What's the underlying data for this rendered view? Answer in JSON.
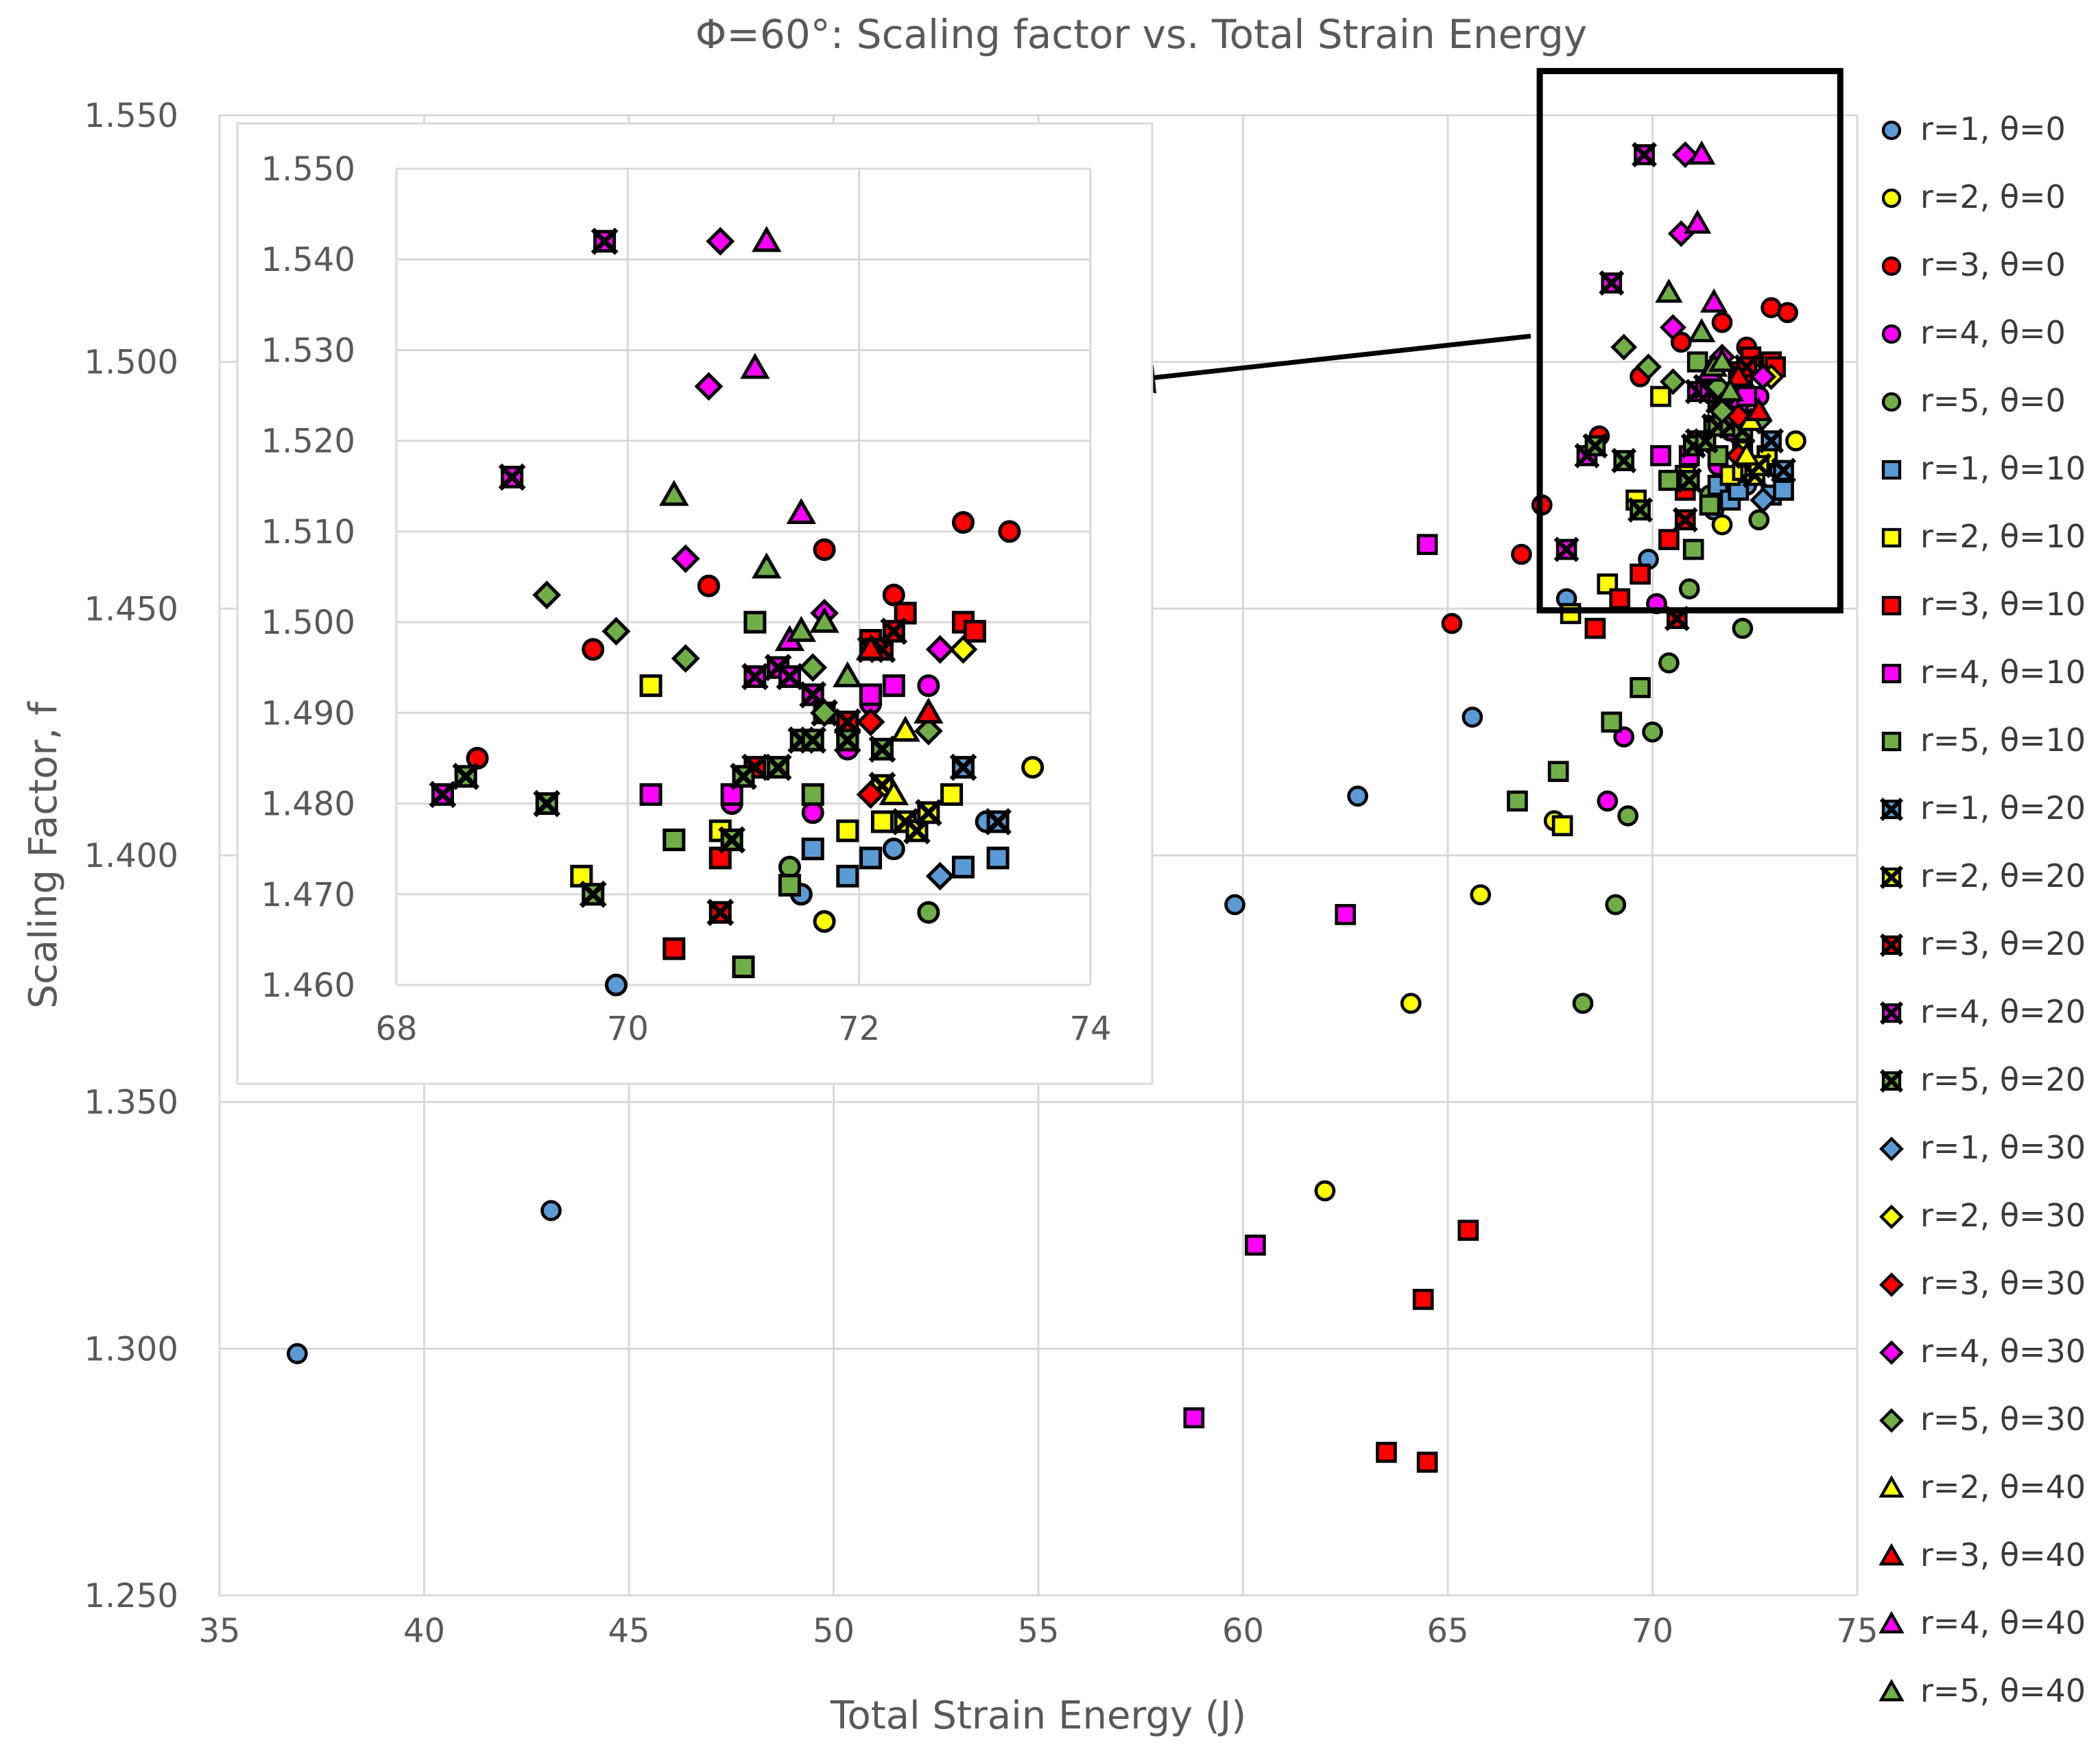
{
  "chart_data": {
    "type": "scatter",
    "title": "Φ=60°: Scaling factor vs. Total Strain Energy",
    "xlabel": "Total Strain Energy (J)",
    "ylabel": "Scaling Factor, f",
    "xlim": [
      35,
      75
    ],
    "ylim": [
      1.25,
      1.55
    ],
    "xticks": [
      "35",
      "40",
      "45",
      "50",
      "55",
      "60",
      "65",
      "70",
      "75"
    ],
    "yticks": [
      "1.250",
      "1.300",
      "1.350",
      "1.400",
      "1.450",
      "1.500",
      "1.550"
    ],
    "grid": true,
    "legend_position": "right",
    "inset": {
      "xlim": [
        68,
        74
      ],
      "ylim": [
        1.46,
        1.55
      ],
      "xticks": [
        "68",
        "70",
        "72",
        "74"
      ],
      "yticks": [
        "1.460",
        "1.470",
        "1.480",
        "1.490",
        "1.500",
        "1.510",
        "1.520",
        "1.530",
        "1.540",
        "1.550"
      ],
      "highlight_box": {
        "x": [
          68,
          74
        ],
        "y": [
          1.458,
          1.552
        ]
      }
    },
    "series": [
      {
        "name": "r=1, θ=0",
        "marker": "circle",
        "color": "#5b9bd5",
        "points": [
          [
            36.9,
            1.299
          ],
          [
            43.1,
            1.328
          ],
          [
            59.8,
            1.39
          ],
          [
            62.8,
            1.412
          ],
          [
            65.6,
            1.428
          ],
          [
            67.9,
            1.452
          ],
          [
            69.9,
            1.46
          ],
          [
            71.5,
            1.47
          ],
          [
            72.3,
            1.475
          ],
          [
            73.1,
            1.478
          ]
        ]
      },
      {
        "name": "r=2, θ=0",
        "marker": "circle",
        "color": "#ffff00",
        "points": [
          [
            62.0,
            1.332
          ],
          [
            64.1,
            1.37
          ],
          [
            65.8,
            1.392
          ],
          [
            67.6,
            1.407
          ],
          [
            71.7,
            1.467
          ],
          [
            73.5,
            1.484
          ]
        ]
      },
      {
        "name": "r=3, θ=0",
        "marker": "circle",
        "color": "#ff0000",
        "points": [
          [
            65.1,
            1.447
          ],
          [
            66.8,
            1.461
          ],
          [
            67.3,
            1.471
          ],
          [
            68.7,
            1.485
          ],
          [
            69.7,
            1.497
          ],
          [
            70.7,
            1.504
          ],
          [
            71.7,
            1.508
          ],
          [
            72.3,
            1.503
          ],
          [
            72.9,
            1.511
          ],
          [
            73.3,
            1.51
          ]
        ]
      },
      {
        "name": "r=4, θ=0",
        "marker": "circle",
        "color": "#ff00ff",
        "points": [
          [
            69.3,
            1.424
          ],
          [
            68.9,
            1.411
          ],
          [
            70.1,
            1.451
          ],
          [
            70.9,
            1.48
          ],
          [
            71.6,
            1.479
          ],
          [
            71.9,
            1.486
          ],
          [
            72.1,
            1.491
          ],
          [
            72.6,
            1.493
          ]
        ]
      },
      {
        "name": "r=5, θ=0",
        "marker": "circle",
        "color": "#70ad47",
        "points": [
          [
            68.3,
            1.37
          ],
          [
            69.1,
            1.39
          ],
          [
            69.4,
            1.408
          ],
          [
            70.0,
            1.425
          ],
          [
            70.4,
            1.439
          ],
          [
            70.9,
            1.454
          ],
          [
            72.2,
            1.446
          ],
          [
            71.4,
            1.473
          ],
          [
            72.6,
            1.468
          ],
          [
            71.0,
            1.462
          ]
        ]
      },
      {
        "name": "r=1, θ=10",
        "marker": "square",
        "color": "#5b9bd5",
        "points": [
          [
            71.6,
            1.475
          ],
          [
            71.9,
            1.472
          ],
          [
            72.1,
            1.474
          ],
          [
            72.9,
            1.473
          ],
          [
            73.2,
            1.474
          ]
        ]
      },
      {
        "name": "r=2, θ=10",
        "marker": "square",
        "color": "#ffff00",
        "points": [
          [
            67.8,
            1.406
          ],
          [
            68.0,
            1.449
          ],
          [
            68.9,
            1.455
          ],
          [
            69.6,
            1.472
          ],
          [
            70.2,
            1.493
          ],
          [
            70.8,
            1.477
          ],
          [
            71.9,
            1.477
          ],
          [
            72.2,
            1.478
          ],
          [
            72.8,
            1.481
          ]
        ]
      },
      {
        "name": "r=3, θ=10",
        "marker": "square",
        "color": "#ff0000",
        "points": [
          [
            63.5,
            1.279
          ],
          [
            64.5,
            1.277
          ],
          [
            64.4,
            1.31
          ],
          [
            65.5,
            1.324
          ],
          [
            68.6,
            1.446
          ],
          [
            69.2,
            1.452
          ],
          [
            69.7,
            1.457
          ],
          [
            70.4,
            1.464
          ],
          [
            70.8,
            1.474
          ],
          [
            71.4,
            1.471
          ],
          [
            72.1,
            1.498
          ],
          [
            72.4,
            1.501
          ],
          [
            72.9,
            1.5
          ],
          [
            73.0,
            1.499
          ]
        ]
      },
      {
        "name": "r=4, θ=10",
        "marker": "square",
        "color": "#ff00ff",
        "points": [
          [
            58.8,
            1.286
          ],
          [
            60.3,
            1.321
          ],
          [
            62.5,
            1.388
          ],
          [
            64.5,
            1.463
          ],
          [
            70.2,
            1.481
          ],
          [
            70.9,
            1.481
          ],
          [
            72.1,
            1.492
          ],
          [
            72.3,
            1.493
          ]
        ]
      },
      {
        "name": "r=5, θ=10",
        "marker": "square",
        "color": "#70ad47",
        "points": [
          [
            66.7,
            1.411
          ],
          [
            67.7,
            1.417
          ],
          [
            69.0,
            1.427
          ],
          [
            69.7,
            1.434
          ],
          [
            70.4,
            1.476
          ],
          [
            71.0,
            1.462
          ],
          [
            71.1,
            1.5
          ],
          [
            71.4,
            1.471
          ],
          [
            71.6,
            1.481
          ],
          [
            71.9,
            1.488
          ]
        ]
      },
      {
        "name": "r=1, θ=20",
        "marker": "xsquare",
        "color": "#5b9bd5",
        "points": [
          [
            72.9,
            1.484
          ],
          [
            73.2,
            1.478
          ]
        ]
      },
      {
        "name": "r=2, θ=20",
        "marker": "xsquare",
        "color": "#ffff00",
        "points": [
          [
            72.2,
            1.482
          ],
          [
            72.4,
            1.478
          ],
          [
            72.5,
            1.477
          ],
          [
            72.6,
            1.479
          ]
        ]
      },
      {
        "name": "r=3, θ=20",
        "marker": "xsquare",
        "color": "#ff0000",
        "points": [
          [
            70.6,
            1.448
          ],
          [
            70.8,
            1.468
          ],
          [
            71.1,
            1.484
          ],
          [
            71.5,
            1.487
          ],
          [
            71.9,
            1.489
          ],
          [
            72.1,
            1.497
          ],
          [
            72.2,
            1.497
          ],
          [
            72.3,
            1.499
          ]
        ]
      },
      {
        "name": "r=4, θ=20",
        "marker": "xsquare",
        "color": "#ff00ff",
        "points": [
          [
            67.9,
            1.462
          ],
          [
            68.4,
            1.481
          ],
          [
            69.0,
            1.516
          ],
          [
            69.8,
            1.542
          ],
          [
            71.1,
            1.494
          ],
          [
            71.3,
            1.495
          ],
          [
            71.4,
            1.494
          ],
          [
            71.6,
            1.492
          ],
          [
            71.7,
            1.49
          ]
        ]
      },
      {
        "name": "r=5, θ=20",
        "marker": "xsquare",
        "color": "#70ad47",
        "points": [
          [
            68.6,
            1.483
          ],
          [
            69.3,
            1.48
          ],
          [
            69.7,
            1.47
          ],
          [
            70.9,
            1.476
          ],
          [
            71.0,
            1.483
          ],
          [
            71.3,
            1.484
          ],
          [
            71.5,
            1.487
          ],
          [
            71.6,
            1.487
          ],
          [
            71.9,
            1.487
          ],
          [
            72.2,
            1.486
          ]
        ]
      },
      {
        "name": "r=1, θ=30",
        "marker": "diamond",
        "color": "#5b9bd5",
        "points": [
          [
            72.7,
            1.472
          ]
        ]
      },
      {
        "name": "r=2, θ=30",
        "marker": "diamond",
        "color": "#ffff00",
        "points": [
          [
            72.9,
            1.497
          ]
        ]
      },
      {
        "name": "r=3, θ=30",
        "marker": "diamond",
        "color": "#ff0000",
        "points": [
          [
            72.1,
            1.481
          ],
          [
            72.1,
            1.489
          ]
        ]
      },
      {
        "name": "r=4, θ=30",
        "marker": "diamond",
        "color": "#ff00ff",
        "points": [
          [
            70.5,
            1.507
          ],
          [
            70.7,
            1.526
          ],
          [
            70.8,
            1.542
          ],
          [
            71.7,
            1.501
          ],
          [
            72.7,
            1.497
          ]
        ]
      },
      {
        "name": "r=5, θ=30",
        "marker": "diamond",
        "color": "#70ad47",
        "points": [
          [
            69.3,
            1.503
          ],
          [
            69.9,
            1.499
          ],
          [
            70.5,
            1.496
          ],
          [
            71.6,
            1.495
          ],
          [
            71.7,
            1.49
          ],
          [
            72.6,
            1.488
          ]
        ]
      },
      {
        "name": "r=2, θ=40",
        "marker": "triangle",
        "color": "#ffff00",
        "points": [
          [
            72.3,
            1.481
          ],
          [
            72.4,
            1.488
          ]
        ]
      },
      {
        "name": "r=3, θ=40",
        "marker": "triangle",
        "color": "#ff0000",
        "points": [
          [
            72.1,
            1.497
          ],
          [
            72.6,
            1.49
          ]
        ]
      },
      {
        "name": "r=4, θ=40",
        "marker": "triangle",
        "color": "#ff00ff",
        "points": [
          [
            71.1,
            1.528
          ],
          [
            71.2,
            1.542
          ],
          [
            71.4,
            1.498
          ],
          [
            71.5,
            1.512
          ]
        ]
      },
      {
        "name": "r=5, θ=40",
        "marker": "triangle",
        "color": "#70ad47",
        "points": [
          [
            70.4,
            1.514
          ],
          [
            71.2,
            1.506
          ],
          [
            71.5,
            1.499
          ],
          [
            71.7,
            1.5
          ],
          [
            71.9,
            1.494
          ]
        ]
      }
    ]
  }
}
